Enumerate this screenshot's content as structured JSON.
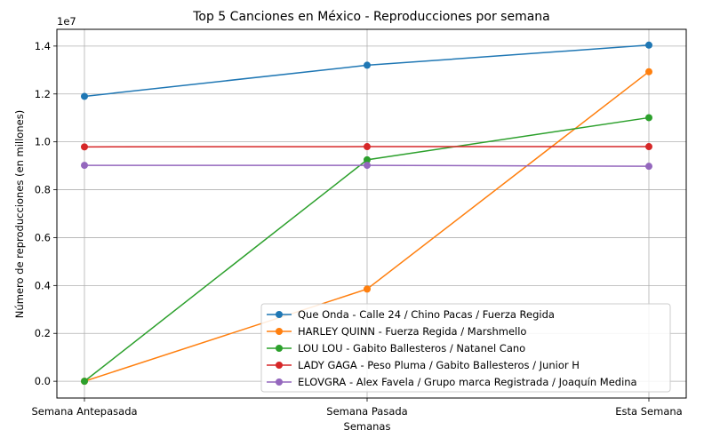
{
  "chart_data": {
    "type": "line",
    "title": "Top 5 Canciones en México - Reproducciones por semana",
    "xlabel": "Semanas",
    "ylabel": "Número de reproducciones (en millones)",
    "y_offset_label": "1e7",
    "categories": [
      "Semana Antepasada",
      "Semana Pasada",
      "Esta Semana"
    ],
    "ylim": [
      -0.07,
      1.47
    ],
    "y_ticks": [
      0.0,
      0.2,
      0.4,
      0.6,
      0.8,
      1.0,
      1.2,
      1.4
    ],
    "y_tick_labels": [
      "0.0",
      "0.2",
      "0.4",
      "0.6",
      "0.8",
      "1.0",
      "1.2",
      "1.4"
    ],
    "grid": true,
    "legend_position": "lower right",
    "series": [
      {
        "name": "Que Onda - Calle 24 / Chino Pacas / Fuerza Regida",
        "color": "#1f77b4",
        "values": [
          1.19,
          1.32,
          1.404
        ]
      },
      {
        "name": "HARLEY QUINN - Fuerza Regida / Marshmello",
        "color": "#ff7f0e",
        "values": [
          0.0,
          0.385,
          1.293
        ]
      },
      {
        "name": "LOU LOU - Gabito Ballesteros / Natanel Cano",
        "color": "#2ca02c",
        "values": [
          0.0,
          0.925,
          1.101
        ]
      },
      {
        "name": "LADY GAGA - Peso Pluma / Gabito Ballesteros / Junior H",
        "color": "#d62728",
        "values": [
          0.979,
          0.98,
          0.98
        ]
      },
      {
        "name": "ELOVGRA - Alex Favela / Grupo marca Registrada / Joaquín Medina",
        "color": "#9467bd",
        "values": [
          0.902,
          0.902,
          0.898
        ]
      }
    ]
  }
}
